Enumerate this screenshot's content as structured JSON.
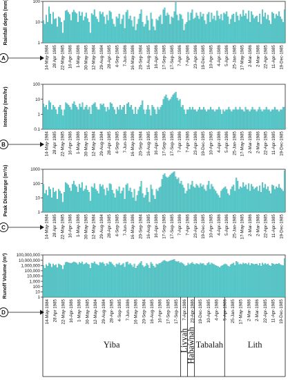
{
  "chart_data": [
    {
      "type": "bar",
      "panel_label": "A",
      "ylabel": "Rainfall depth (mm)",
      "scale": "log",
      "ylim": [
        1,
        100
      ],
      "yticks": [
        "1",
        "10",
        "100"
      ],
      "color": "#58d6d6",
      "values": [
        12,
        8,
        22,
        10,
        55,
        25,
        8,
        30,
        14,
        15,
        6,
        18,
        16,
        10,
        3,
        12,
        35,
        38,
        30,
        24,
        12,
        30,
        38,
        30,
        26,
        10,
        32,
        20,
        30,
        12,
        18,
        28,
        15,
        10,
        3,
        26,
        22,
        40,
        18,
        14,
        10,
        32,
        24,
        30,
        18,
        8,
        22,
        12,
        35,
        30,
        14,
        8,
        6,
        18,
        15,
        25,
        8,
        14,
        22,
        5,
        30,
        38,
        14,
        20,
        12,
        6,
        18,
        4,
        8,
        14,
        25,
        40,
        10,
        6,
        8,
        20,
        12,
        4,
        28,
        14,
        6,
        4,
        14,
        12,
        18,
        22,
        8,
        40,
        50,
        20,
        28,
        22,
        8,
        18,
        16,
        32,
        90,
        22,
        12,
        25,
        22,
        14,
        4,
        8,
        10,
        30,
        12,
        28,
        40,
        14,
        16,
        28,
        20,
        14,
        30,
        18,
        25,
        12,
        8,
        24,
        30,
        10,
        28,
        14,
        20,
        12,
        35,
        20,
        14,
        24,
        12,
        28,
        24,
        32,
        18,
        8,
        14,
        22,
        25,
        10,
        30,
        20,
        12,
        24,
        18,
        38,
        20,
        26,
        14,
        35,
        10,
        32,
        22,
        15,
        18,
        20,
        10,
        25,
        8,
        40,
        18,
        28,
        14,
        22,
        12,
        8,
        30,
        26,
        15,
        24,
        20,
        32,
        18,
        14,
        10,
        40
      ]
    },
    {
      "type": "bar",
      "panel_label": "B",
      "ylabel": "Intensity (mm/hr)",
      "scale": "log",
      "ylim": [
        0.1,
        100
      ],
      "yticks": [
        "0.1",
        "1",
        "10",
        "100"
      ],
      "color": "#58d6d6",
      "values": [
        5,
        3,
        4,
        2,
        8,
        6,
        2,
        4,
        3,
        2,
        1,
        3,
        4,
        2,
        0.8,
        2,
        6,
        5,
        4,
        3,
        2,
        5,
        7,
        4,
        3,
        2,
        5,
        3,
        6,
        2,
        3,
        4,
        2,
        3,
        1,
        4,
        5,
        6,
        3,
        2,
        2,
        5,
        4,
        5,
        3,
        1.5,
        3,
        2,
        6,
        5,
        3,
        2,
        1,
        3,
        2,
        4,
        2,
        3,
        4,
        1,
        5,
        6,
        3,
        4,
        2,
        1,
        3,
        1,
        2,
        3,
        4,
        8,
        2,
        1,
        2,
        4,
        2,
        0.8,
        4,
        3,
        2,
        1,
        3,
        2,
        3,
        4,
        10,
        15,
        20,
        12,
        8,
        10,
        14,
        20,
        25,
        30,
        12,
        8,
        10,
        3,
        4,
        2,
        1,
        2,
        2,
        3,
        2,
        3,
        2,
        2,
        1.5,
        2,
        3,
        2,
        2,
        3,
        2,
        1.5,
        2,
        2,
        3,
        2,
        2,
        1.5,
        2,
        2,
        3,
        2,
        1,
        2,
        1.5,
        2,
        2,
        3,
        2,
        1.5,
        2,
        2,
        3,
        2,
        2,
        3,
        2,
        2,
        1.5,
        3,
        2,
        2,
        1.5,
        2,
        3,
        2,
        2,
        1.5,
        2,
        3,
        2,
        1.5,
        2,
        2,
        3,
        2,
        2,
        1.5,
        2,
        2,
        3,
        2,
        2,
        1.5,
        2,
        2,
        3,
        3
      ]
    },
    {
      "type": "bar",
      "panel_label": "C",
      "ylabel": "Peak Discharge (m³/s)",
      "scale": "log",
      "ylim": [
        1,
        1000
      ],
      "yticks": [
        "1",
        "10",
        "100",
        "1000"
      ],
      "color": "#58d6d6",
      "values": [
        90,
        20,
        35,
        15,
        60,
        40,
        10,
        50,
        25,
        30,
        8,
        40,
        30,
        20,
        5,
        25,
        120,
        100,
        80,
        50,
        30,
        90,
        150,
        80,
        60,
        25,
        90,
        50,
        120,
        30,
        40,
        70,
        35,
        25,
        6,
        60,
        50,
        100,
        40,
        30,
        20,
        90,
        60,
        80,
        40,
        15,
        50,
        30,
        100,
        90,
        35,
        20,
        10,
        40,
        30,
        60,
        20,
        30,
        50,
        8,
        80,
        100,
        30,
        50,
        25,
        10,
        40,
        6,
        15,
        30,
        60,
        150,
        20,
        10,
        15,
        50,
        25,
        5,
        80,
        40,
        15,
        8,
        40,
        30,
        50,
        60,
        200,
        400,
        500,
        300,
        250,
        300,
        400,
        500,
        600,
        700,
        300,
        200,
        250,
        100,
        150,
        80,
        50,
        20,
        30,
        100,
        40,
        80,
        150,
        60,
        50,
        90,
        70,
        50,
        100,
        60,
        80,
        40,
        30,
        80,
        150,
        40,
        90,
        60,
        40,
        30,
        20,
        15,
        10,
        30,
        40,
        50,
        60,
        40,
        20,
        15,
        40,
        60,
        80,
        30,
        250,
        150,
        40,
        60,
        50,
        120,
        60,
        80,
        40,
        100,
        30,
        90,
        60,
        40,
        50,
        60,
        30,
        70,
        25,
        120,
        50,
        90,
        40,
        60,
        30,
        20,
        80,
        70,
        40,
        60,
        50,
        90,
        50,
        40,
        30,
        800
      ]
    },
    {
      "type": "bar",
      "panel_label": "D",
      "ylabel": "Runoff Volume (m³)",
      "scale": "log",
      "ylim": [
        1,
        100000000
      ],
      "yticks": [
        "1",
        "10",
        "100",
        "1,000",
        "10,000",
        "100,000",
        "1,000,000",
        "10,000,000",
        "100,000,000"
      ],
      "color": "#58d6d6",
      "values": [
        1000000,
        300000,
        1500000,
        800000,
        3000000,
        2000000,
        500000,
        2000000,
        1000000,
        1500000,
        400000,
        2000000,
        1500000,
        1000000,
        200000,
        1200000,
        4000000,
        4500000,
        3500000,
        3000000,
        2500000,
        3500000,
        5000000,
        4000000,
        3000000,
        1500000,
        4000000,
        2500000,
        5000000,
        1500000,
        2000000,
        3500000,
        2000000,
        1500000,
        300000,
        3000000,
        2500000,
        5000000,
        2000000,
        1500000,
        1000000,
        4000000,
        3000000,
        4000000,
        2000000,
        800000,
        2500000,
        1500000,
        5000000,
        4000000,
        2000000,
        1000000,
        500000,
        2000000,
        1500000,
        3000000,
        1000000,
        1500000,
        2500000,
        500000,
        4000000,
        5000000,
        1500000,
        2500000,
        1200000,
        500000,
        2000000,
        300000,
        800000,
        1500000,
        3000000,
        6000000,
        1000000,
        500000,
        800000,
        2500000,
        1200000,
        300000,
        4000000,
        2000000,
        800000,
        400000,
        2000000,
        1500000,
        2500000,
        3000000,
        5000000,
        8000000,
        10000000,
        6000000,
        5000000,
        6000000,
        8000000,
        10000000,
        12000000,
        15000000,
        6000000,
        5000000,
        6000000,
        3000000,
        4000000,
        2500000,
        1500000,
        800000,
        1000000,
        3000000,
        1500000,
        2500000,
        4000000,
        2000000,
        1500000,
        2500000,
        2000000,
        1500000,
        3000000,
        2000000,
        2500000,
        1200000,
        1000000,
        2500000,
        4000000,
        1500000,
        3000000,
        2000000,
        1500000,
        1000000,
        800000,
        600000,
        400000,
        800000,
        1000000,
        1500000,
        2000000,
        1500000,
        800000,
        600000,
        1500000,
        2000000,
        3000000,
        1000000,
        6000000,
        4000000,
        1500000,
        2000000,
        1500000,
        3000000,
        2000000,
        2500000,
        1500000,
        3000000,
        1000000,
        2500000,
        2000000,
        1500000,
        1800000,
        2000000,
        1000000,
        2500000,
        800000,
        3000000,
        1500000,
        2500000,
        1500000,
        2000000,
        1000000,
        800000,
        2500000,
        2000000,
        1500000,
        2000000,
        1800000,
        2500000,
        1500000,
        1200000,
        1000000,
        20000000
      ]
    }
  ],
  "x_tick_labels": [
    "14-May-1984",
    "28 Apr 1985",
    "22-May-1985",
    "16-Apr-1986",
    "1-May-1986",
    "30-May-1985",
    "12-May-1984",
    "29-Aug-1984",
    "28-Apr-1985",
    "4-Sep-1985",
    "7-Jun-1986",
    "16-May-1986",
    "20-Sep-1984",
    "16-Aug-1985",
    "16-Apr-1986",
    "17-Sep-1985",
    "17-Sep-1985",
    "7-Apr-1986",
    "7-Apr-1986",
    "23-Apr-1986",
    "19-Dec-1985",
    "10-Apr-1985",
    "4-Apr-1986",
    "5-Apr-1986",
    "25-Jan-1985",
    "17-May-1985",
    "2-Mar-1986",
    "2-Mar-1986",
    "22-Apr-1985",
    "11-Apr-1985",
    "19-Dec-1985"
  ],
  "bottom_tick_labels": [
    "14-May-1984",
    "28 Apr 1985",
    "22-May-1985",
    "16-Apr-1986",
    "1-May-1986",
    "30-May-1985",
    "12-May-1984",
    "29-Aug-1984",
    "28-Apr-1985",
    "4-Sep-1985",
    "7-Jun-1986",
    "16-May-1986",
    "20-Sep-1984",
    "16-Aug-1985",
    "16-Apr-1986",
    "17-Sep-1985",
    "17-Sep-1985",
    "7-Apr-1986",
    "23-Apr-1986",
    "19-Dec-1985",
    "10-Apr-1985",
    "4-Apr-1986",
    "5-Apr-1986",
    "25-Jan-1985",
    "17-May-1985",
    "2-Mar-1986",
    "2-Mar-1986",
    "22-Apr-1985",
    "11-Apr-1985",
    "19-Dec-1985"
  ],
  "groups": [
    {
      "name": "Yiba",
      "from": 0,
      "to": 100,
      "vertical": false
    },
    {
      "name": "Liyyah",
      "from": 100,
      "to": 105,
      "vertical": true
    },
    {
      "name": "Habawnah",
      "from": 105,
      "to": 110,
      "vertical": true
    },
    {
      "name": "Tabalah",
      "from": 110,
      "to": 132,
      "vertical": false
    },
    {
      "name": "Lith",
      "from": 132,
      "to": 176,
      "vertical": false
    }
  ],
  "theme": {
    "bar_color": "#58d6d6",
    "bar_edge": "#2a7f85",
    "axis_color": "#222222"
  }
}
